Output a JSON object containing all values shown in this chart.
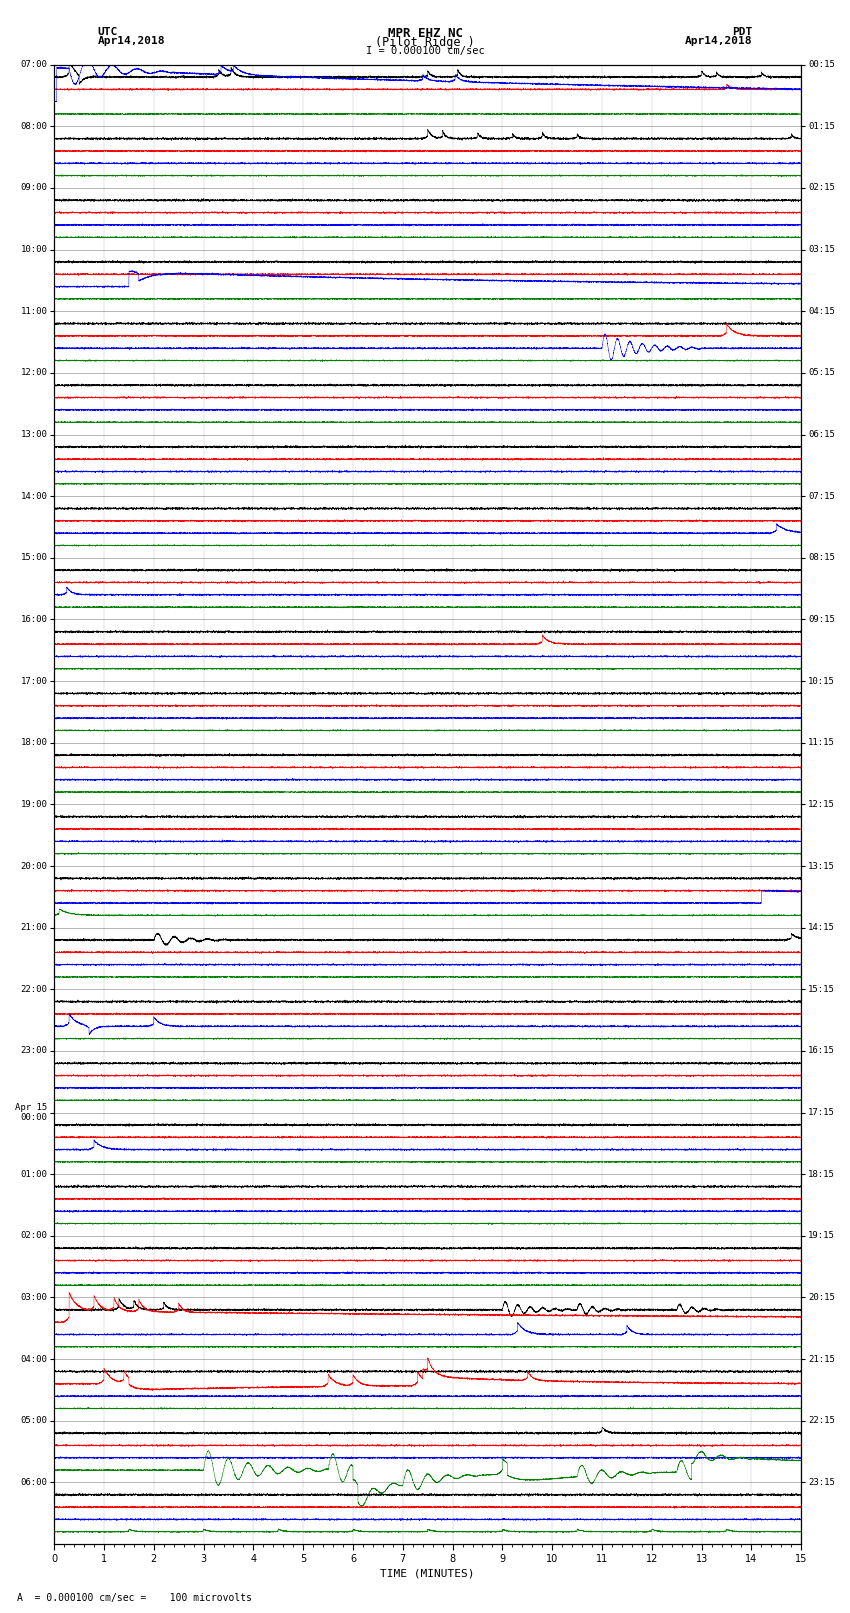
{
  "title_line1": "MPR EHZ NC",
  "title_line2": "(Pilot Ridge )",
  "scale_label": "I = 0.000100 cm/sec",
  "left_label_line1": "UTC",
  "left_label_line2": "Apr14,2018",
  "right_label_line1": "PDT",
  "right_label_line2": "Apr14,2018",
  "bottom_label": "A  = 0.000100 cm/sec =    100 microvolts",
  "xlabel": "TIME (MINUTES)",
  "left_times": [
    "07:00",
    "08:00",
    "09:00",
    "10:00",
    "11:00",
    "12:00",
    "13:00",
    "14:00",
    "15:00",
    "16:00",
    "17:00",
    "18:00",
    "19:00",
    "20:00",
    "21:00",
    "22:00",
    "23:00",
    "Apr 15\n00:00",
    "01:00",
    "02:00",
    "03:00",
    "04:00",
    "05:00",
    "06:00"
  ],
  "right_times": [
    "00:15",
    "01:15",
    "02:15",
    "03:15",
    "04:15",
    "05:15",
    "06:15",
    "07:15",
    "08:15",
    "09:15",
    "10:15",
    "11:15",
    "12:15",
    "13:15",
    "14:15",
    "15:15",
    "16:15",
    "17:15",
    "18:15",
    "19:15",
    "20:15",
    "21:15",
    "22:15",
    "23:15"
  ],
  "n_rows": 24,
  "trace_colors": [
    "black",
    "red",
    "blue",
    "green"
  ],
  "bg_color": "white",
  "xlim": [
    0,
    15
  ],
  "x_ticks": [
    0,
    1,
    2,
    3,
    4,
    5,
    6,
    7,
    8,
    9,
    10,
    11,
    12,
    13,
    14,
    15
  ]
}
